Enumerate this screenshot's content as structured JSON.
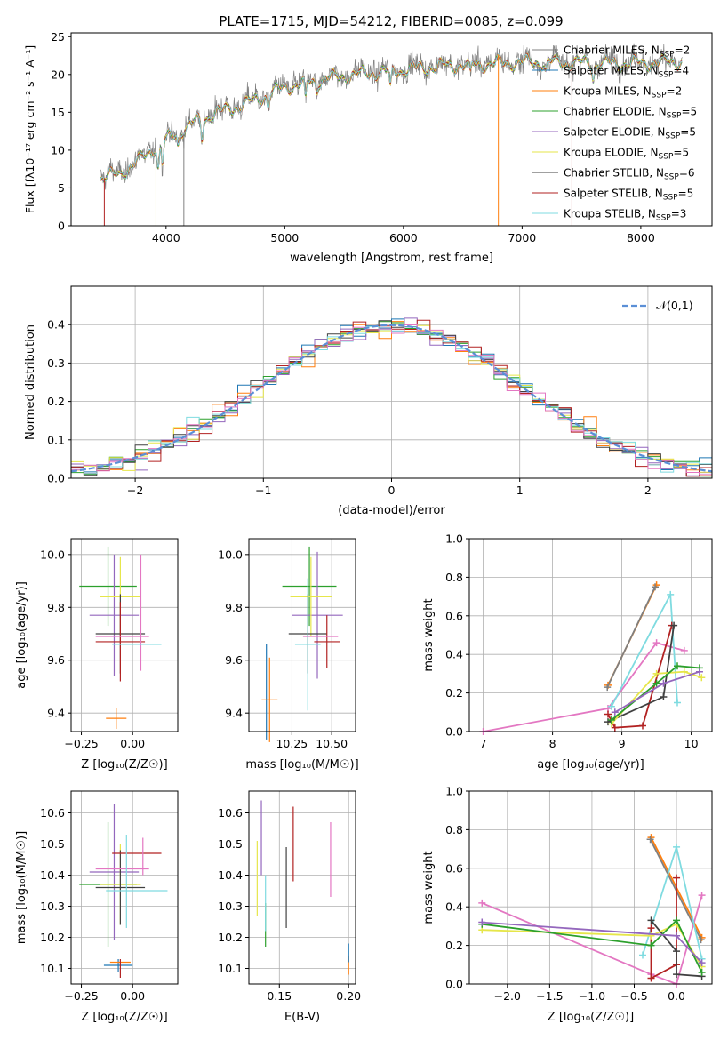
{
  "figure_title": "PLATE=1715, MJD=54212, FIBERID=0085, z=0.099",
  "colors": {
    "Chabrier MILES": "#7f7f7f",
    "Salpeter MILES": "#1f77b4",
    "Kroupa MILES": "#ff7f0e",
    "Chabrier ELODIE": "#2ca02c",
    "Salpeter ELODIE": "#9467bd",
    "Kroupa ELODIE": "#e6e64a",
    "Chabrier STELIB": "#404040",
    "Salpeter STELIB": "#b22222",
    "Kroupa STELIB": "#7fdbe0",
    "pink": "#e377c2",
    "gaussian": "#5b8fd6"
  },
  "chart_data": [
    {
      "id": "spectrum",
      "type": "line",
      "xlabel": "wavelength [Angstrom, rest frame]",
      "ylabel": "Flux [f_λ 10^-17 erg cm^-2 s^-1 A^-1]",
      "xlim": [
        3200,
        8600
      ],
      "ylim": [
        0,
        25.5
      ],
      "xticks": [
        4000,
        5000,
        6000,
        7000,
        8000
      ],
      "yticks": [
        0,
        5,
        10,
        15,
        20,
        25
      ],
      "grid": false,
      "legend_position": "right",
      "continuum": [
        [
          3450,
          6.5
        ],
        [
          3600,
          7.0
        ],
        [
          3750,
          8.5
        ],
        [
          3900,
          10.5
        ],
        [
          4050,
          12.0
        ],
        [
          4200,
          13.5
        ],
        [
          4400,
          15.0
        ],
        [
          4700,
          16.5
        ],
        [
          5000,
          18.5
        ],
        [
          5300,
          19.5
        ],
        [
          5600,
          20.2
        ],
        [
          6000,
          20.8
        ],
        [
          6300,
          21.3
        ],
        [
          6600,
          21.5
        ],
        [
          7000,
          21.8
        ],
        [
          7400,
          21.8
        ],
        [
          7800,
          21.6
        ],
        [
          8200,
          21.8
        ],
        [
          8350,
          22.0
        ]
      ],
      "series": [
        {
          "name": "Chabrier MILES, N_SSP=2"
        },
        {
          "name": "Salpeter MILES, N_SSP=4"
        },
        {
          "name": "Kroupa MILES, N_SSP=2"
        },
        {
          "name": "Chabrier ELODIE, N_SSP=5"
        },
        {
          "name": "Salpeter ELODIE, N_SSP=5"
        },
        {
          "name": "Kroupa ELODIE, N_SSP=5"
        },
        {
          "name": "Chabrier STELIB, N_SSP=6"
        },
        {
          "name": "Salpeter STELIB, N_SSP=5"
        },
        {
          "name": "Kroupa STELIB, N_SSP=3"
        }
      ]
    },
    {
      "id": "residuals",
      "type": "line",
      "xlabel": "(data-model)/error",
      "ylabel": "Normed distribution",
      "xlim": [
        -2.5,
        2.5
      ],
      "ylim": [
        0,
        0.5
      ],
      "xticks": [
        -2,
        -1,
        0,
        1,
        2
      ],
      "yticks": [
        0.0,
        0.1,
        0.2,
        0.3,
        0.4
      ],
      "grid": true,
      "legend_position": "top-right",
      "legend": [
        "𝒩(0,1)"
      ],
      "bins": {
        "start": -2.5,
        "width": 0.1,
        "count": 50
      }
    },
    {
      "id": "age-vs-Z",
      "type": "scatter",
      "xlabel": "Z [log10(Z/Z☉)]",
      "ylabel": "age [log10(age/yr)]",
      "xlim": [
        -0.3,
        0.22
      ],
      "ylim": [
        9.33,
        10.06
      ],
      "xticks": [
        -0.25,
        0.0
      ],
      "yticks": [
        9.4,
        9.6,
        9.8,
        10.0
      ],
      "grid": true,
      "points": [
        {
          "c": "Chabrier ELODIE",
          "x": -0.12,
          "xerr": 0.14,
          "y": 9.88,
          "yerr": 0.15
        },
        {
          "c": "Salpeter ELODIE",
          "x": -0.09,
          "xerr": 0.12,
          "y": 9.77,
          "yerr": 0.23
        },
        {
          "c": "Kroupa ELODIE",
          "x": -0.06,
          "xerr": 0.1,
          "y": 9.84,
          "yerr": 0.15
        },
        {
          "c": "Chabrier STELIB",
          "x": -0.06,
          "xerr": 0.12,
          "y": 9.7,
          "yerr": 0.15
        },
        {
          "c": "Salpeter STELIB",
          "x": -0.06,
          "xerr": 0.12,
          "y": 9.67,
          "yerr": 0.15
        },
        {
          "c": "pink",
          "x": 0.04,
          "xerr": 0.0,
          "y": 9.78,
          "yerr": 0.22
        },
        {
          "c": "pink",
          "x": -0.05,
          "xerr": 0.13,
          "y": 9.69,
          "yerr": 0.0
        },
        {
          "c": "Kroupa STELIB",
          "x": 0.02,
          "xerr": 0.12,
          "y": 9.66,
          "yerr": 0.0
        },
        {
          "c": "Salpeter MILES",
          "x": -0.12,
          "xerr": 0.0,
          "y": 9.38,
          "yerr": 0.0
        },
        {
          "c": "Kroupa MILES",
          "x": -0.08,
          "xerr": 0.05,
          "y": 9.38,
          "yerr": 0.04
        }
      ]
    },
    {
      "id": "age-vs-mass",
      "type": "scatter",
      "xlabel": "mass [log10(M/M☉)]",
      "ylabel": "",
      "xlim": [
        9.98,
        10.65
      ],
      "ylim": [
        9.33,
        10.06
      ],
      "xticks": [
        10.25,
        10.5
      ],
      "yticks": [
        9.4,
        9.6,
        9.8,
        10.0
      ],
      "grid": true,
      "points": [
        {
          "c": "Chabrier ELODIE",
          "x": 10.36,
          "xerr": 0.17,
          "y": 9.88,
          "yerr": 0.15
        },
        {
          "c": "Salpeter ELODIE",
          "x": 10.41,
          "xerr": 0.16,
          "y": 9.77,
          "yerr": 0.24
        },
        {
          "c": "Kroupa ELODIE",
          "x": 10.37,
          "xerr": 0.13,
          "y": 9.84,
          "yerr": 0.15
        },
        {
          "c": "Chabrier STELIB",
          "x": 10.35,
          "xerr": 0.12,
          "y": 9.7,
          "yerr": 0.15
        },
        {
          "c": "Salpeter STELIB",
          "x": 10.47,
          "xerr": 0.08,
          "y": 9.67,
          "yerr": 0.1
        },
        {
          "c": "pink",
          "x": 10.43,
          "xerr": 0.11,
          "y": 9.69,
          "yerr": 0.0
        },
        {
          "c": "Kroupa STELIB",
          "x": 10.35,
          "xerr": 0.08,
          "y": 9.66,
          "yerr": 0.25
        },
        {
          "c": "Salpeter MILES",
          "x": 10.09,
          "xerr": 0.0,
          "y": 9.48,
          "yerr": 0.18
        },
        {
          "c": "Kroupa MILES",
          "x": 10.11,
          "xerr": 0.05,
          "y": 9.45,
          "yerr": 0.16
        }
      ]
    },
    {
      "id": "weight-vs-age",
      "type": "line",
      "xlabel": "age [log10(age/yr)]",
      "ylabel": "mass weight",
      "xlim": [
        6.8,
        10.3
      ],
      "ylim": [
        0,
        1.0
      ],
      "xticks": [
        7,
        8,
        9,
        10
      ],
      "yticks": [
        0.0,
        0.2,
        0.4,
        0.6,
        0.8,
        1.0
      ],
      "grid": true,
      "series": [
        {
          "c": "Kroupa MILES",
          "points": [
            [
              8.8,
              0.24
            ],
            [
              9.5,
              0.76
            ]
          ]
        },
        {
          "c": "Chabrier MILES",
          "points": [
            [
              8.79,
              0.23
            ],
            [
              9.48,
              0.75
            ]
          ]
        },
        {
          "c": "pink",
          "points": [
            [
              7.0,
              0.0
            ],
            [
              8.8,
              0.12
            ],
            [
              9.5,
              0.46
            ],
            [
              9.9,
              0.42
            ]
          ]
        },
        {
          "c": "Kroupa STELIB",
          "points": [
            [
              8.85,
              0.13
            ],
            [
              9.7,
              0.71
            ],
            [
              9.8,
              0.15
            ]
          ]
        },
        {
          "c": "Salpeter STELIB",
          "points": [
            [
              8.8,
              0.09
            ],
            [
              8.9,
              0.02
            ],
            [
              9.3,
              0.03
            ],
            [
              9.72,
              0.55
            ]
          ]
        },
        {
          "c": "Chabrier STELIB",
          "points": [
            [
              8.8,
              0.05
            ],
            [
              9.6,
              0.18
            ],
            [
              9.75,
              0.55
            ]
          ]
        },
        {
          "c": "Kroupa ELODIE",
          "points": [
            [
              8.85,
              0.04
            ],
            [
              9.5,
              0.3
            ],
            [
              9.9,
              0.31
            ],
            [
              10.15,
              0.28
            ]
          ]
        },
        {
          "c": "Chabrier ELODIE",
          "points": [
            [
              8.85,
              0.06
            ],
            [
              9.5,
              0.25
            ],
            [
              9.8,
              0.34
            ],
            [
              10.12,
              0.33
            ]
          ]
        },
        {
          "c": "Salpeter ELODIE",
          "points": [
            [
              8.9,
              0.1
            ],
            [
              9.6,
              0.25
            ],
            [
              10.12,
              0.31
            ]
          ]
        }
      ]
    },
    {
      "id": "mass-vs-Z",
      "type": "scatter",
      "xlabel": "Z [log10(Z/Z☉)]",
      "ylabel": "mass [log10(M/M☉)]",
      "xlim": [
        -0.3,
        0.22
      ],
      "ylim": [
        10.05,
        10.67
      ],
      "xticks": [
        -0.25,
        0.0
      ],
      "yticks": [
        10.1,
        10.2,
        10.3,
        10.4,
        10.5,
        10.6
      ],
      "grid": true,
      "points": [
        {
          "c": "Chabrier ELODIE",
          "x": -0.12,
          "xerr": 0.14,
          "y": 10.37,
          "yerr": 0.2
        },
        {
          "c": "Salpeter ELODIE",
          "x": -0.09,
          "xerr": 0.12,
          "y": 10.41,
          "yerr": 0.22
        },
        {
          "c": "Kroupa ELODIE",
          "x": -0.06,
          "xerr": 0.1,
          "y": 10.37,
          "yerr": 0.13
        },
        {
          "c": "Chabrier STELIB",
          "x": -0.06,
          "xerr": 0.12,
          "y": 10.36,
          "yerr": 0.12
        },
        {
          "c": "Salpeter STELIB",
          "x": 0.02,
          "xerr": 0.12,
          "y": 10.47,
          "yerr": 0.0
        },
        {
          "c": "pink",
          "x": -0.05,
          "xerr": 0.13,
          "y": 10.42,
          "yerr": 0.0
        },
        {
          "c": "pink",
          "x": 0.05,
          "xerr": 0.0,
          "y": 10.46,
          "yerr": 0.06
        },
        {
          "c": "Kroupa STELIB",
          "x": 0.02,
          "xerr": 0.15,
          "y": 10.35,
          "yerr": 0.0
        },
        {
          "c": "Kroupa STELIB",
          "x": -0.03,
          "xerr": 0.0,
          "y": 10.38,
          "yerr": 0.15
        },
        {
          "c": "Salpeter MILES",
          "x": -0.07,
          "xerr": 0.07,
          "y": 10.11,
          "yerr": 0.02
        },
        {
          "c": "Kroupa MILES",
          "x": -0.06,
          "xerr": 0.05,
          "y": 10.12,
          "yerr": 0.0
        },
        {
          "c": "Salpeter STELIB",
          "x": -0.06,
          "xerr": 0.0,
          "y": 10.1,
          "yerr": 0.03
        }
      ]
    },
    {
      "id": "mass-vs-EBV",
      "type": "scatter",
      "xlabel": "E(B-V)",
      "ylabel": "",
      "xlim": [
        0.128,
        0.205
      ],
      "ylim": [
        10.05,
        10.67
      ],
      "xticks": [
        0.15,
        0.2
      ],
      "yticks": [
        10.1,
        10.2,
        10.3,
        10.4,
        10.5,
        10.6
      ],
      "grid": true,
      "points": [
        {
          "c": "Kroupa ELODIE",
          "x": 0.134,
          "xerr": 0.0,
          "y": 10.39,
          "yerr": 0.12
        },
        {
          "c": "Salpeter ELODIE",
          "x": 0.137,
          "xerr": 0.0,
          "y": 10.52,
          "yerr": 0.12
        },
        {
          "c": "Chabrier ELODIE",
          "x": 0.14,
          "xerr": 0.0,
          "y": 10.24,
          "yerr": 0.07
        },
        {
          "c": "Kroupa STELIB",
          "x": 0.14,
          "xerr": 0.0,
          "y": 10.31,
          "yerr": 0.09
        },
        {
          "c": "Chabrier STELIB",
          "x": 0.155,
          "xerr": 0.0,
          "y": 10.36,
          "yerr": 0.13
        },
        {
          "c": "Salpeter STELIB",
          "x": 0.16,
          "xerr": 0.0,
          "y": 10.5,
          "yerr": 0.12
        },
        {
          "c": "pink",
          "x": 0.187,
          "xerr": 0.0,
          "y": 10.45,
          "yerr": 0.12
        },
        {
          "c": "Kroupa MILES",
          "x": 0.2,
          "xerr": 0.0,
          "y": 10.11,
          "yerr": 0.03
        },
        {
          "c": "Salpeter MILES",
          "x": 0.2,
          "xerr": 0.0,
          "y": 10.15,
          "yerr": 0.03
        }
      ]
    },
    {
      "id": "weight-vs-Z",
      "type": "line",
      "xlabel": "Z [log10(Z/Z☉)]",
      "ylabel": "mass weight",
      "xlim": [
        -2.45,
        0.42
      ],
      "ylim": [
        0,
        1.0
      ],
      "xticks": [
        -2.0,
        -1.5,
        -1.0,
        -0.5,
        0.0
      ],
      "yticks": [
        0.0,
        0.2,
        0.4,
        0.6,
        0.8,
        1.0
      ],
      "grid": true,
      "series": [
        {
          "c": "Kroupa MILES",
          "points": [
            [
              -0.3,
              0.76
            ],
            [
              0.3,
              0.24
            ]
          ]
        },
        {
          "c": "Chabrier MILES",
          "points": [
            [
              -0.31,
              0.75
            ],
            [
              0.29,
              0.23
            ]
          ]
        },
        {
          "c": "pink",
          "points": [
            [
              -2.3,
              0.42
            ],
            [
              -0.3,
              0.05
            ],
            [
              0.0,
              0.0
            ],
            [
              0.3,
              0.46
            ]
          ]
        },
        {
          "c": "Kroupa STELIB",
          "points": [
            [
              -0.4,
              0.15
            ],
            [
              0.0,
              0.71
            ],
            [
              0.3,
              0.13
            ]
          ]
        },
        {
          "c": "Salpeter STELIB",
          "points": [
            [
              -0.3,
              0.29
            ],
            [
              -0.3,
              0.03
            ],
            [
              0.0,
              0.1
            ],
            [
              0.0,
              0.55
            ]
          ]
        },
        {
          "c": "Chabrier STELIB",
          "points": [
            [
              -0.3,
              0.33
            ],
            [
              0.0,
              0.17
            ],
            [
              0.0,
              0.05
            ],
            [
              0.3,
              0.04
            ]
          ]
        },
        {
          "c": "Kroupa ELODIE",
          "points": [
            [
              -2.3,
              0.28
            ],
            [
              -0.3,
              0.25
            ],
            [
              0.0,
              0.31
            ],
            [
              0.3,
              0.09
            ]
          ]
        },
        {
          "c": "Chabrier ELODIE",
          "points": [
            [
              -2.3,
              0.31
            ],
            [
              -0.3,
              0.2
            ],
            [
              0.0,
              0.33
            ],
            [
              0.3,
              0.06
            ]
          ]
        },
        {
          "c": "Salpeter ELODIE",
          "points": [
            [
              -2.3,
              0.32
            ],
            [
              0.0,
              0.25
            ],
            [
              0.3,
              0.11
            ]
          ]
        }
      ]
    }
  ]
}
